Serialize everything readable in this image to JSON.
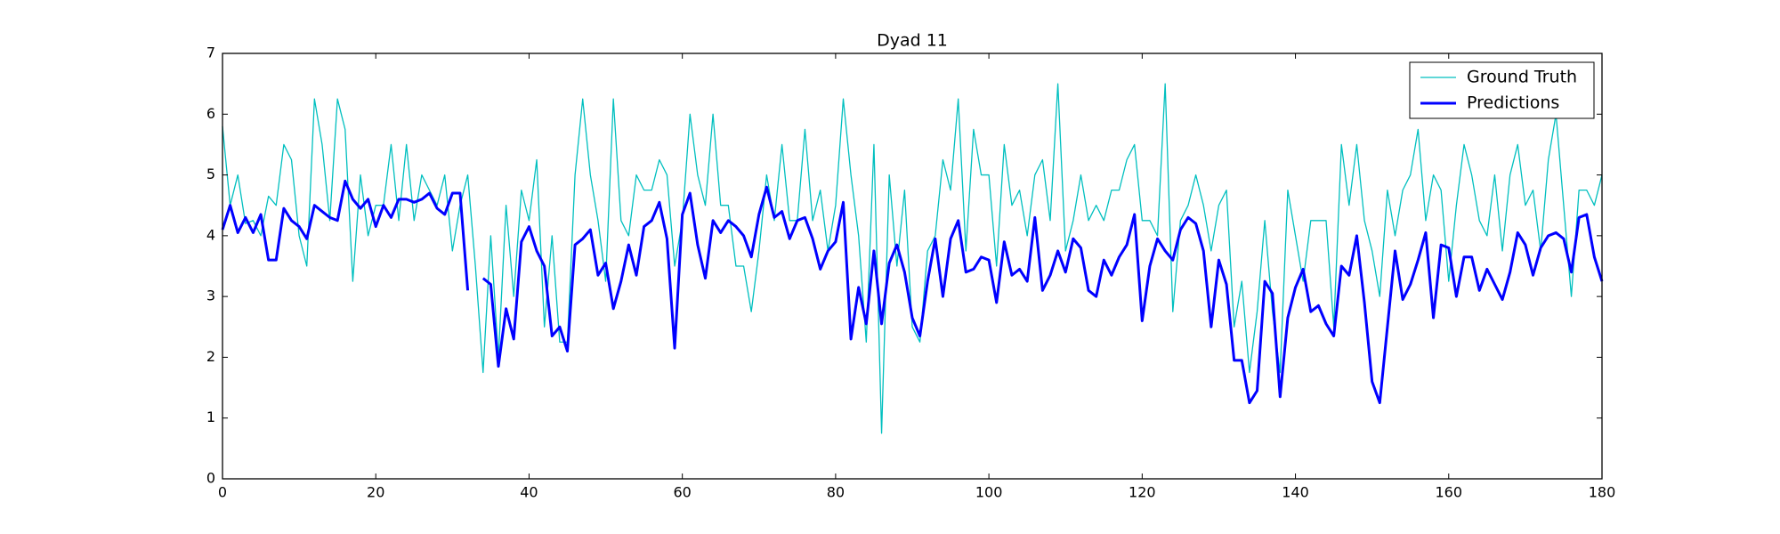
{
  "chart_data": {
    "type": "line",
    "title": "Dyad 11",
    "x": [
      0,
      1,
      2,
      3,
      4,
      5,
      6,
      7,
      8,
      9,
      10,
      11,
      12,
      13,
      14,
      15,
      16,
      17,
      18,
      19,
      20,
      21,
      22,
      23,
      24,
      25,
      26,
      27,
      28,
      29,
      30,
      31,
      32,
      33,
      34,
      35,
      36,
      37,
      38,
      39,
      40,
      41,
      42,
      43,
      44,
      45,
      46,
      47,
      48,
      49,
      50,
      51,
      52,
      53,
      54,
      55,
      56,
      57,
      58,
      59,
      60,
      61,
      62,
      63,
      64,
      65,
      66,
      67,
      68,
      69,
      70,
      71,
      72,
      73,
      74,
      75,
      76,
      77,
      78,
      79,
      80,
      81,
      82,
      83,
      84,
      85,
      86,
      87,
      88,
      89,
      90,
      91,
      92,
      93,
      94,
      95,
      96,
      97,
      98,
      99,
      100,
      101,
      102,
      103,
      104,
      105,
      106,
      107,
      108,
      109,
      110,
      111,
      112,
      113,
      114,
      115,
      116,
      117,
      118,
      119,
      120,
      121,
      122,
      123,
      124,
      125,
      126,
      127,
      128,
      129,
      130,
      131,
      132,
      133,
      134,
      135,
      136,
      137,
      138,
      139,
      140,
      141,
      142,
      143,
      144,
      145,
      146,
      147,
      148,
      149,
      150,
      151,
      152,
      153,
      154,
      155,
      156,
      157,
      158,
      159,
      160,
      161,
      162,
      163,
      164,
      165,
      166,
      167,
      168,
      169,
      170,
      171,
      172,
      173,
      174,
      175,
      176,
      177,
      178,
      179,
      180
    ],
    "series": [
      {
        "name": "Ground Truth",
        "color": "#00bfbf",
        "width": 1.3,
        "values": [
          5.8,
          4.5,
          5.0,
          4.2,
          4.25,
          4.0,
          4.65,
          4.5,
          5.5,
          5.25,
          4.0,
          3.5,
          6.25,
          5.5,
          4.25,
          6.25,
          5.75,
          3.25,
          5.0,
          4.0,
          4.5,
          4.5,
          5.5,
          4.25,
          5.5,
          4.25,
          5.0,
          4.75,
          4.5,
          5.0,
          3.75,
          4.5,
          5.0,
          3.5,
          1.75,
          4.0,
          2.0,
          4.5,
          3.0,
          4.75,
          4.25,
          5.25,
          2.5,
          4.0,
          2.25,
          2.25,
          5.0,
          6.25,
          5.0,
          4.25,
          3.25,
          6.25,
          4.25,
          4.0,
          5.0,
          4.75,
          4.75,
          5.25,
          5.0,
          3.5,
          4.25,
          6.0,
          5.0,
          4.5,
          6.0,
          4.5,
          4.5,
          3.5,
          3.5,
          2.75,
          3.75,
          5.0,
          4.25,
          5.5,
          4.25,
          4.25,
          5.75,
          4.25,
          4.75,
          3.75,
          4.5,
          6.25,
          5.0,
          4.0,
          2.25,
          5.5,
          0.75,
          5.0,
          3.5,
          4.75,
          2.5,
          2.25,
          3.75,
          4.0,
          5.25,
          4.75,
          6.25,
          3.75,
          5.75,
          5.0,
          5.0,
          3.5,
          5.5,
          4.5,
          4.75,
          4.0,
          5.0,
          5.25,
          4.25,
          6.5,
          3.75,
          4.25,
          5.0,
          4.25,
          4.5,
          4.25,
          4.75,
          4.75,
          5.25,
          5.5,
          4.25,
          4.25,
          4.0,
          6.5,
          2.75,
          4.25,
          4.5,
          5.0,
          4.5,
          3.75,
          4.5,
          4.75,
          2.5,
          3.25,
          1.75,
          2.75,
          4.25,
          2.75,
          1.75,
          4.75,
          4.0,
          3.25,
          4.25,
          4.25,
          4.25,
          2.5,
          5.5,
          4.5,
          5.5,
          4.25,
          3.75,
          3.0,
          4.75,
          4.0,
          4.75,
          5.0,
          5.75,
          4.25,
          5.0,
          4.75,
          3.25,
          4.5,
          5.5,
          5.0,
          4.25,
          4.0,
          5.0,
          3.75,
          5.0,
          5.5,
          4.5,
          4.75,
          3.75,
          5.25,
          6.0,
          4.5,
          3.0,
          4.75,
          4.75,
          4.5,
          5.0
        ]
      },
      {
        "name": "Predictions",
        "color": "#0000ff",
        "width": 3,
        "values": [
          4.1,
          4.5,
          4.05,
          4.3,
          4.05,
          4.35,
          3.6,
          3.6,
          4.45,
          4.25,
          4.15,
          3.95,
          4.5,
          4.4,
          4.3,
          4.25,
          4.9,
          4.6,
          4.45,
          4.6,
          4.15,
          4.5,
          4.3,
          4.6,
          4.6,
          4.55,
          4.6,
          4.7,
          4.45,
          4.35,
          4.7,
          4.7,
          3.1,
          null,
          3.3,
          3.2,
          1.85,
          2.8,
          2.3,
          3.9,
          4.15,
          3.75,
          3.5,
          2.35,
          2.5,
          2.1,
          3.85,
          3.95,
          4.1,
          3.35,
          3.55,
          2.8,
          3.25,
          3.85,
          3.35,
          4.15,
          4.25,
          4.55,
          3.95,
          2.15,
          4.35,
          4.7,
          3.85,
          3.3,
          4.25,
          4.05,
          4.25,
          4.15,
          4.0,
          3.65,
          4.35,
          4.8,
          4.3,
          4.4,
          3.95,
          4.25,
          4.3,
          3.95,
          3.45,
          3.75,
          3.9,
          4.55,
          2.3,
          3.15,
          2.55,
          3.75,
          2.55,
          3.55,
          3.85,
          3.4,
          2.65,
          2.35,
          3.25,
          3.95,
          3.0,
          3.95,
          4.25,
          3.4,
          3.45,
          3.65,
          3.6,
          2.9,
          3.9,
          3.35,
          3.45,
          3.25,
          4.3,
          3.1,
          3.35,
          3.75,
          3.4,
          3.95,
          3.8,
          3.1,
          3.0,
          3.6,
          3.35,
          3.65,
          3.85,
          4.35,
          2.6,
          3.5,
          3.95,
          3.75,
          3.6,
          4.1,
          4.3,
          4.2,
          3.75,
          2.5,
          3.6,
          3.2,
          1.95,
          1.95,
          1.25,
          1.45,
          3.25,
          3.05,
          1.35,
          2.65,
          3.15,
          3.45,
          2.75,
          2.85,
          2.55,
          2.35,
          3.5,
          3.35,
          4.0,
          2.9,
          1.6,
          1.25,
          2.5,
          3.75,
          2.95,
          3.2,
          3.6,
          4.05,
          2.65,
          3.85,
          3.8,
          3.0,
          3.65,
          3.65,
          3.1,
          3.45,
          3.2,
          2.95,
          3.4,
          4.05,
          3.85,
          3.35,
          3.8,
          4.0,
          4.05,
          3.95,
          3.4,
          4.3,
          4.35,
          3.65,
          3.25
        ]
      }
    ],
    "xlim": [
      0,
      180
    ],
    "xticks": [
      0,
      20,
      40,
      60,
      80,
      100,
      120,
      140,
      160,
      180
    ],
    "ylim": [
      0,
      7
    ],
    "yticks": [
      0,
      1,
      2,
      3,
      4,
      5,
      6,
      7
    ],
    "grid": false,
    "legend": "upper right"
  }
}
